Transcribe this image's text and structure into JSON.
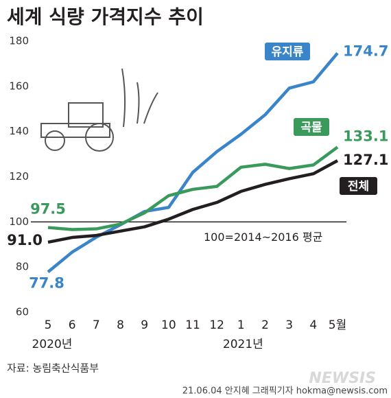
{
  "chart_data": {
    "type": "line",
    "title": "세계 식량 가격지수 추이",
    "categories": [
      "5",
      "6",
      "7",
      "8",
      "9",
      "10",
      "11",
      "12",
      "1",
      "2",
      "3",
      "4",
      "5월"
    ],
    "year_labels": [
      "2020년",
      "2021년"
    ],
    "series": [
      {
        "name": "유지류",
        "color": "#3a84c9",
        "values": [
          77.8,
          86.6,
          93.2,
          98.7,
          104.6,
          106.4,
          121.9,
          131.1,
          138.8,
          147.4,
          159.2,
          162.0,
          174.7
        ],
        "value_labels": [
          "77.8",
          null,
          null,
          null,
          null,
          null,
          null,
          null,
          null,
          null,
          null,
          null,
          "174.7"
        ]
      },
      {
        "name": "곡물",
        "color": "#3a9a5c",
        "values": [
          97.5,
          96.6,
          96.9,
          99.0,
          104.0,
          111.6,
          114.4,
          115.7,
          124.2,
          125.5,
          123.6,
          125.2,
          133.1
        ],
        "value_labels": [
          "97.5",
          null,
          null,
          null,
          null,
          null,
          null,
          null,
          null,
          null,
          null,
          null,
          "133.1"
        ]
      },
      {
        "name": "전체",
        "color": "#231f20",
        "values": [
          91.0,
          93.1,
          94.0,
          95.9,
          97.8,
          101.2,
          105.5,
          108.6,
          113.5,
          116.6,
          119.1,
          121.3,
          127.1
        ],
        "value_labels": [
          "91.0",
          null,
          null,
          null,
          null,
          null,
          null,
          null,
          null,
          null,
          null,
          null,
          "127.1"
        ]
      }
    ],
    "ylim": [
      60,
      180
    ],
    "yticks": [
      60,
      80,
      100,
      120,
      140,
      160,
      180
    ],
    "reference": {
      "value": 100,
      "label": "100=2014~2016 평균"
    },
    "source": "자료: 농림축산식품부",
    "credit": "21.06.04 안지혜 그래픽기자 hokma@newsis.com",
    "watermark": "NEWSIS"
  }
}
